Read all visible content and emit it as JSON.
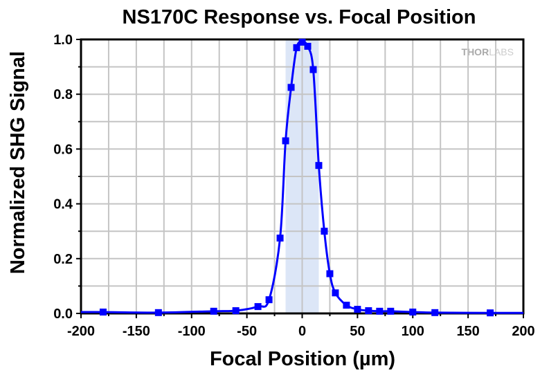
{
  "chart_data": {
    "type": "line",
    "title": "NS170C Response vs. Focal Position",
    "xlabel": "Focal Position (µm)",
    "ylabel": "Normalized SHG Signal",
    "xlim": [
      -200,
      200
    ],
    "ylim": [
      0,
      1.0
    ],
    "xticks": [
      -200,
      -150,
      -100,
      -50,
      0,
      50,
      100,
      150,
      200
    ],
    "yticks": [
      "0.0",
      "0.2",
      "0.4",
      "0.6",
      "0.8",
      "1.0"
    ],
    "grid": true,
    "shaded_band": [
      -15,
      15
    ],
    "watermark": "THORLABS",
    "series": [
      {
        "name": "NS170C",
        "color": "#0000ff",
        "x": [
          -180,
          -130,
          -80,
          -60,
          -40,
          -30,
          -20,
          -15,
          -10,
          -5,
          0,
          5,
          10,
          15,
          20,
          25,
          30,
          40,
          50,
          60,
          70,
          80,
          100,
          120,
          170
        ],
        "y": [
          0.005,
          0.003,
          0.008,
          0.01,
          0.025,
          0.05,
          0.275,
          0.63,
          0.825,
          0.97,
          0.99,
          0.975,
          0.89,
          0.54,
          0.3,
          0.145,
          0.075,
          0.03,
          0.015,
          0.01,
          0.008,
          0.008,
          0.005,
          0.003,
          0.002
        ]
      }
    ]
  }
}
